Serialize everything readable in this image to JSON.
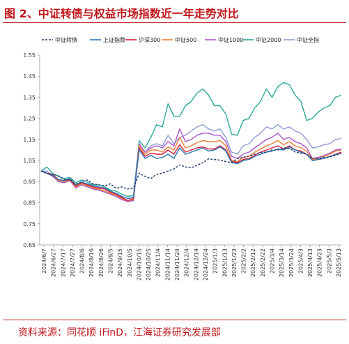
{
  "header": {
    "title": "图 2、中证转债与权益市场指数近一年走势对比"
  },
  "footer": {
    "source": "资料来源：同花顺 iFinD，江海证券研究发展部"
  },
  "colors": {
    "accent": "#c0171c",
    "series": [
      "#1f3a6e",
      "#2e75b6",
      "#d61f3c",
      "#ed7d31",
      "#a855c7",
      "#2aa89a",
      "#8e9bd6"
    ]
  },
  "chart_data": {
    "type": "line",
    "ylim": [
      0.65,
      1.55
    ],
    "yticks": [
      "0.65",
      "0.75",
      "0.85",
      "0.95",
      "1.05",
      "1.15",
      "1.25",
      "1.35",
      "1.45",
      "1.55"
    ],
    "xticks": [
      "2024/6/7",
      "2024/6/27",
      "2024/7/17",
      "2024/7/27",
      "2024/8/6",
      "2024/8/16",
      "2024/8/26",
      "2024/9/5",
      "2024/9/15",
      "2024/10/5",
      "2024/10/15",
      "2024/10/25",
      "2024/11/4",
      "2024/11/14",
      "2024/11/24",
      "2024/12/4",
      "2024/12/14",
      "2024/12/24",
      "2025/1/3",
      "2025/1/13",
      "2025/1/23",
      "2025/2/2",
      "2025/2/12",
      "2025/2/22",
      "2025/3/4",
      "2025/3/14",
      "2025/3/24",
      "2025/4/3",
      "2025/4/13",
      "2025/4/23",
      "2025/5/3",
      "2025/5/13"
    ],
    "series": [
      {
        "name": "中证转债",
        "dashed": true,
        "values": [
          1.0,
          0.988,
          0.985,
          0.978,
          0.96,
          0.958,
          0.938,
          0.95,
          0.958,
          0.94,
          0.935,
          0.93,
          0.94,
          0.918,
          0.925,
          0.915,
          0.92,
          0.99,
          0.975,
          0.965,
          0.985,
          0.99,
          1.0,
          1.01,
          1.03,
          1.02,
          1.015,
          1.028,
          1.04,
          1.058,
          1.055,
          1.052,
          1.045,
          1.04,
          1.06,
          1.065,
          1.072,
          1.08,
          1.088,
          1.09,
          1.1,
          1.1,
          1.11,
          1.108,
          1.09,
          1.085,
          1.08,
          1.06,
          1.06,
          1.065,
          1.068,
          1.075,
          1.085
        ]
      },
      {
        "name": "上证指数",
        "values": [
          1.0,
          0.99,
          0.98,
          0.96,
          0.955,
          0.965,
          0.935,
          0.948,
          0.94,
          0.932,
          0.925,
          0.92,
          0.905,
          0.895,
          0.88,
          0.87,
          0.875,
          1.1,
          1.06,
          1.075,
          1.06,
          1.065,
          1.08,
          1.06,
          1.11,
          1.08,
          1.09,
          1.1,
          1.11,
          1.095,
          1.1,
          1.115,
          1.095,
          1.04,
          1.035,
          1.05,
          1.055,
          1.07,
          1.08,
          1.09,
          1.095,
          1.105,
          1.1,
          1.115,
          1.1,
          1.09,
          1.08,
          1.05,
          1.055,
          1.06,
          1.07,
          1.078,
          1.085
        ]
      },
      {
        "name": "沪深300",
        "values": [
          1.0,
          0.99,
          0.985,
          0.96,
          0.955,
          0.96,
          0.93,
          0.945,
          0.935,
          0.925,
          0.92,
          0.915,
          0.9,
          0.89,
          0.875,
          0.86,
          0.87,
          1.11,
          1.07,
          1.085,
          1.08,
          1.08,
          1.1,
          1.08,
          1.125,
          1.09,
          1.1,
          1.11,
          1.115,
          1.105,
          1.105,
          1.12,
          1.1,
          1.045,
          1.04,
          1.055,
          1.06,
          1.075,
          1.09,
          1.1,
          1.11,
          1.12,
          1.105,
          1.12,
          1.1,
          1.095,
          1.08,
          1.05,
          1.055,
          1.06,
          1.07,
          1.08,
          1.09
        ]
      },
      {
        "name": "中证500",
        "values": [
          1.0,
          0.99,
          0.98,
          0.955,
          0.95,
          0.958,
          0.925,
          0.94,
          0.93,
          0.92,
          0.915,
          0.905,
          0.895,
          0.885,
          0.87,
          0.86,
          0.865,
          1.12,
          1.08,
          1.1,
          1.1,
          1.09,
          1.115,
          1.1,
          1.16,
          1.11,
          1.12,
          1.135,
          1.145,
          1.14,
          1.14,
          1.145,
          1.12,
          1.05,
          1.045,
          1.065,
          1.07,
          1.09,
          1.105,
          1.12,
          1.13,
          1.145,
          1.125,
          1.14,
          1.12,
          1.11,
          1.095,
          1.055,
          1.06,
          1.07,
          1.08,
          1.095,
          1.1
        ]
      },
      {
        "name": "中证1000",
        "values": [
          1.0,
          0.99,
          0.975,
          0.95,
          0.945,
          0.955,
          0.92,
          0.935,
          0.925,
          0.915,
          0.91,
          0.9,
          0.89,
          0.88,
          0.865,
          0.855,
          0.86,
          1.13,
          1.09,
          1.11,
          1.12,
          1.11,
          1.14,
          1.12,
          1.2,
          1.14,
          1.15,
          1.17,
          1.18,
          1.18,
          1.17,
          1.17,
          1.14,
          1.07,
          1.06,
          1.08,
          1.09,
          1.11,
          1.13,
          1.15,
          1.16,
          1.18,
          1.15,
          1.16,
          1.14,
          1.13,
          1.11,
          1.06,
          1.065,
          1.075,
          1.085,
          1.1,
          1.105
        ]
      },
      {
        "name": "中证2000",
        "values": [
          1.0,
          1.02,
          0.99,
          0.975,
          0.965,
          0.97,
          0.945,
          0.958,
          0.948,
          0.935,
          0.935,
          0.925,
          0.91,
          0.905,
          0.89,
          0.88,
          0.885,
          1.145,
          1.11,
          1.16,
          1.22,
          1.21,
          1.32,
          1.26,
          1.26,
          1.31,
          1.33,
          1.37,
          1.39,
          1.36,
          1.31,
          1.31,
          1.27,
          1.175,
          1.17,
          1.24,
          1.25,
          1.3,
          1.33,
          1.39,
          1.35,
          1.4,
          1.42,
          1.41,
          1.36,
          1.33,
          1.24,
          1.25,
          1.28,
          1.3,
          1.31,
          1.35,
          1.36
        ]
      },
      {
        "name": "中证全指",
        "values": [
          1.0,
          1.0,
          0.98,
          0.96,
          0.955,
          0.96,
          0.935,
          0.945,
          0.94,
          0.93,
          0.925,
          0.915,
          0.9,
          0.89,
          0.88,
          0.87,
          0.875,
          1.13,
          1.09,
          1.12,
          1.13,
          1.12,
          1.17,
          1.13,
          1.16,
          1.17,
          1.19,
          1.21,
          1.22,
          1.2,
          1.19,
          1.2,
          1.16,
          1.09,
          1.08,
          1.12,
          1.13,
          1.16,
          1.18,
          1.21,
          1.2,
          1.22,
          1.2,
          1.21,
          1.19,
          1.18,
          1.15,
          1.11,
          1.115,
          1.125,
          1.13,
          1.15,
          1.155
        ]
      }
    ]
  }
}
